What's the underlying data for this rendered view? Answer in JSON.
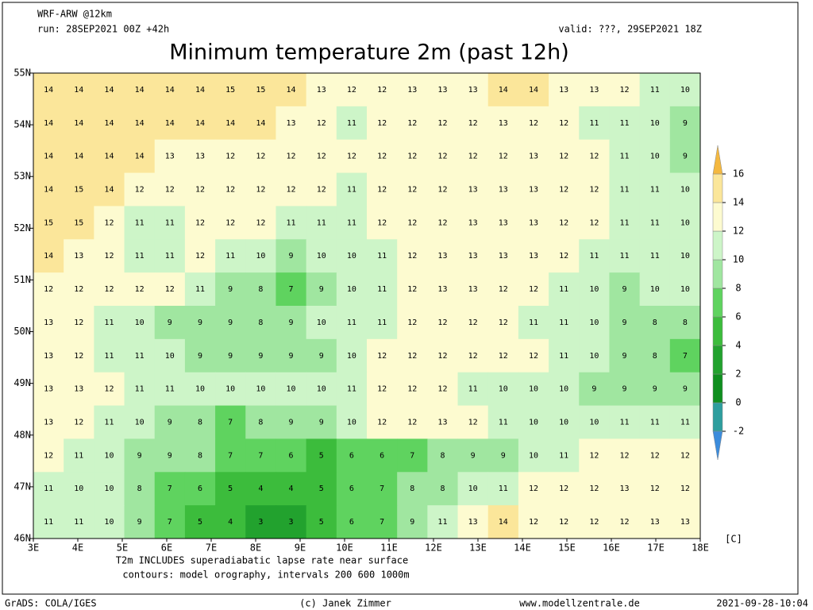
{
  "header": {
    "model": "WRF-ARW @12km",
    "run": "run: 28SEP2021 00Z +42h",
    "valid": "valid: ???, 29SEP2021 18Z",
    "title": "Minimum temperature 2m (past 12h)"
  },
  "map": {
    "lon_labels": [
      "3E",
      "4E",
      "5E",
      "6E",
      "7E",
      "8E",
      "9E",
      "10E",
      "11E",
      "12E",
      "13E",
      "14E",
      "15E",
      "16E",
      "17E",
      "18E"
    ],
    "lat_labels": [
      "55N",
      "54N",
      "53N",
      "52N",
      "51N",
      "50N",
      "49N",
      "48N",
      "47N",
      "46N"
    ],
    "grid": [
      [
        14,
        14,
        14,
        14,
        14,
        14,
        15,
        15,
        14,
        13,
        12,
        12,
        13,
        13,
        13,
        14,
        14,
        13,
        13,
        12,
        11,
        10
      ],
      [
        14,
        14,
        14,
        14,
        14,
        14,
        14,
        14,
        13,
        12,
        11,
        12,
        12,
        12,
        12,
        13,
        12,
        12,
        11,
        11,
        10,
        9
      ],
      [
        14,
        14,
        14,
        14,
        13,
        13,
        12,
        12,
        12,
        12,
        12,
        12,
        12,
        12,
        12,
        12,
        13,
        12,
        12,
        11,
        10,
        9
      ],
      [
        14,
        15,
        14,
        12,
        12,
        12,
        12,
        12,
        12,
        12,
        11,
        12,
        12,
        12,
        13,
        13,
        13,
        12,
        12,
        11,
        11,
        10
      ],
      [
        15,
        15,
        12,
        11,
        11,
        12,
        12,
        12,
        11,
        11,
        11,
        12,
        12,
        12,
        13,
        13,
        13,
        12,
        12,
        11,
        11,
        10
      ],
      [
        14,
        13,
        12,
        11,
        11,
        12,
        11,
        10,
        9,
        10,
        10,
        11,
        12,
        13,
        13,
        13,
        13,
        12,
        11,
        11,
        11,
        10
      ],
      [
        12,
        12,
        12,
        12,
        12,
        11,
        9,
        8,
        7,
        9,
        10,
        11,
        12,
        13,
        13,
        12,
        12,
        11,
        10,
        9,
        10,
        10
      ],
      [
        13,
        12,
        11,
        10,
        9,
        9,
        9,
        8,
        9,
        10,
        11,
        11,
        12,
        12,
        12,
        12,
        11,
        11,
        10,
        9,
        8,
        8
      ],
      [
        13,
        12,
        11,
        11,
        10,
        9,
        9,
        9,
        9,
        9,
        10,
        12,
        12,
        12,
        12,
        12,
        12,
        11,
        10,
        9,
        8,
        7
      ],
      [
        13,
        13,
        12,
        11,
        11,
        10,
        10,
        10,
        10,
        10,
        11,
        12,
        12,
        12,
        11,
        10,
        10,
        10,
        9,
        9,
        9,
        9
      ],
      [
        13,
        12,
        11,
        10,
        9,
        8,
        7,
        8,
        9,
        9,
        10,
        12,
        12,
        13,
        12,
        11,
        10,
        10,
        10,
        11,
        11,
        11
      ],
      [
        12,
        11,
        10,
        9,
        9,
        8,
        7,
        7,
        6,
        5,
        6,
        6,
        7,
        8,
        9,
        9,
        10,
        11,
        12,
        12,
        12,
        12
      ],
      [
        11,
        10,
        10,
        8,
        7,
        6,
        5,
        4,
        4,
        5,
        6,
        7,
        8,
        8,
        10,
        11,
        12,
        12,
        12,
        13,
        12,
        12
      ],
      [
        11,
        11,
        10,
        9,
        7,
        5,
        4,
        3,
        3,
        5,
        6,
        7,
        9,
        11,
        13,
        14,
        12,
        12,
        12,
        12,
        13,
        13
      ]
    ]
  },
  "colorbar": {
    "levels": [
      -2,
      0,
      2,
      4,
      6,
      8,
      10,
      12,
      14,
      16
    ],
    "unit": "[C]",
    "colors": [
      "#3c8cdc",
      "#2e9e9e",
      "#0f8f1f",
      "#22a22e",
      "#3cbc3c",
      "#5fd35f",
      "#a0e6a0",
      "#cdf5c8",
      "#fdfbd0",
      "#fbe69a",
      "#f4b840"
    ]
  },
  "footer": {
    "note1": "T2m INCLUDES superadiabatic lapse rate near surface",
    "note2": "contours: model orography, intervals 200 600 1000m",
    "grads": "GrADS: COLA/IGES",
    "credit": "(c) Janek Zimmer",
    "site": "www.modellzentrale.de",
    "stamp": "2021-09-28-10:04"
  }
}
